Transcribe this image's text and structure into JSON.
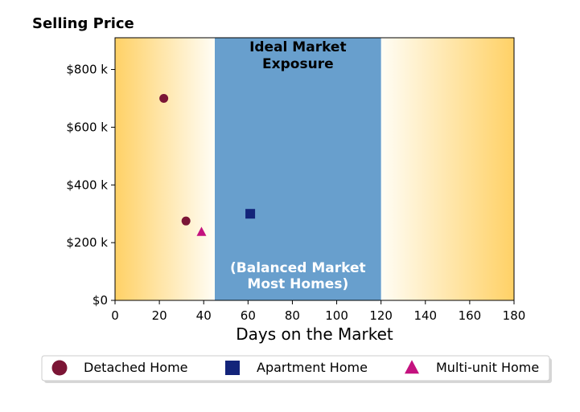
{
  "chart_data": {
    "type": "scatter",
    "ylabel": "Selling Price",
    "xlabel": "Days on the Market",
    "xlim": [
      0,
      180
    ],
    "ylim": [
      0,
      910000
    ],
    "x_ticks": [
      0,
      20,
      40,
      60,
      80,
      100,
      120,
      140,
      160,
      180
    ],
    "x_tick_labels": [
      "0",
      "20",
      "40",
      "60",
      "80",
      "100",
      "120",
      "140",
      "160",
      "180"
    ],
    "y_ticks": [
      0,
      200000,
      400000,
      600000,
      800000
    ],
    "y_tick_labels": [
      "$0",
      "$200 k",
      "$400 k",
      "$600 k",
      "$800 k"
    ],
    "grid": false,
    "band": {
      "x_start": 45,
      "x_end": 120,
      "color": "#689fcd",
      "label_top": [
        "Ideal Market",
        "Exposure"
      ],
      "label_bottom": [
        "(Balanced Market",
        "Most Homes)"
      ]
    },
    "outside_gradient": {
      "edge_color": "#ffd166",
      "inner_color": "#fffdf5"
    },
    "series": [
      {
        "name": "Detached Home",
        "marker": "circle",
        "color": "#7b1535",
        "points": [
          {
            "x": 22,
            "y": 700000
          },
          {
            "x": 32,
            "y": 275000
          }
        ]
      },
      {
        "name": "Apartment Home",
        "marker": "square",
        "color": "#13247a",
        "points": [
          {
            "x": 61,
            "y": 300000
          }
        ]
      },
      {
        "name": "Multi-unit Home",
        "marker": "triangle",
        "color": "#c4127f",
        "points": [
          {
            "x": 39,
            "y": 237000
          }
        ]
      }
    ],
    "legend": {
      "placement": "bottom-center"
    }
  }
}
